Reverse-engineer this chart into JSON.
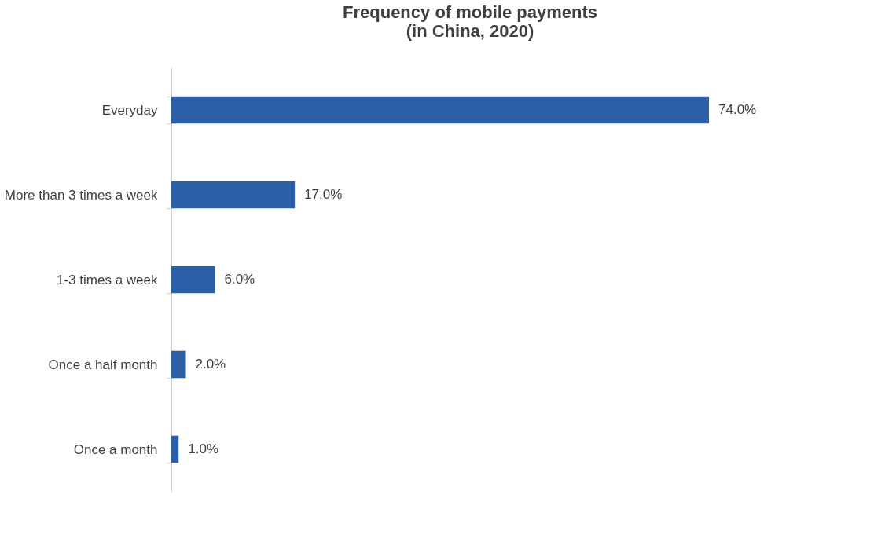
{
  "chart_data": {
    "type": "bar",
    "orientation": "horizontal",
    "title": [
      "Frequency of mobile payments",
      "(in China, 2020)"
    ],
    "categories": [
      "Everyday",
      "More than 3 times a week",
      "1-3 times a week",
      "Once a half month",
      "Once a month"
    ],
    "values": [
      74.0,
      17.0,
      6.0,
      2.0,
      1.0
    ],
    "value_labels": [
      "74.0%",
      "17.0%",
      "6.0%",
      "2.0%",
      "1.0%"
    ],
    "color": "#2b5fa6",
    "tick_labels": "y"
  }
}
